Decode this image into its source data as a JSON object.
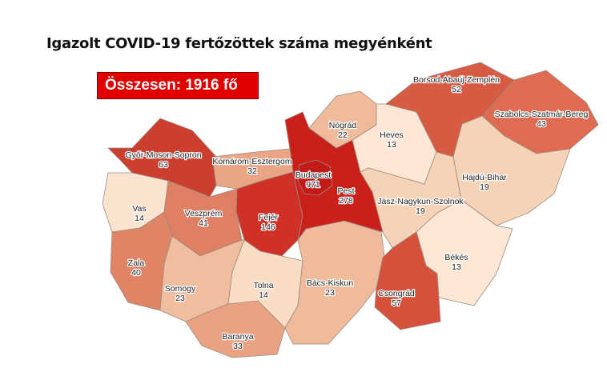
{
  "title": "Igazolt COVID-19 fertőzöttek száma megyénként",
  "total_label": "Összesen: 1916 fő",
  "legend_colors": {
    "highest": "#c61f1a",
    "lowest": "#fbe7d3"
  },
  "counties": [
    {
      "name": "Győr-Moson-Sopron",
      "value": 63,
      "color": "#cc3f2e"
    },
    {
      "name": "Komárom-Esztergom",
      "value": 32,
      "color": "#eaa585"
    },
    {
      "name": "Vas",
      "value": 14,
      "color": "#fbe4cf"
    },
    {
      "name": "Veszprém",
      "value": 41,
      "color": "#df7f63"
    },
    {
      "name": "Zala",
      "value": 40,
      "color": "#e08466"
    },
    {
      "name": "Fejér",
      "value": 146,
      "color": "#cf3126"
    },
    {
      "name": "Somogy",
      "value": 23,
      "color": "#f0bd9e"
    },
    {
      "name": "Baranya",
      "value": 33,
      "color": "#eaa282"
    },
    {
      "name": "Tolna",
      "value": 14,
      "color": "#f8dcc3"
    },
    {
      "name": "Bács-Kiskun",
      "value": 23,
      "color": "#f0bb9b"
    },
    {
      "name": "Pest",
      "value": 278,
      "color": "#cb1f1a"
    },
    {
      "name": "Budapest",
      "value": 971,
      "color": "#c21a17"
    },
    {
      "name": "Nógrád",
      "value": 22,
      "color": "#f0bb9b"
    },
    {
      "name": "Heves",
      "value": 13,
      "color": "#fce7d4"
    },
    {
      "name": "Borsod-Abaúj-Zemplén",
      "value": 52,
      "color": "#d75a43"
    },
    {
      "name": "Szabolcs-Szatmár-Bereg",
      "value": 43,
      "color": "#dd6c52"
    },
    {
      "name": "Hajdú-Bihar",
      "value": 19,
      "color": "#f6d3b7"
    },
    {
      "name": "Jász-Nagykun-Szolnok",
      "value": 19,
      "color": "#f6d3b7"
    },
    {
      "name": "Békés",
      "value": 13,
      "color": "#fce7d4"
    },
    {
      "name": "Csongrád",
      "value": 57,
      "color": "#d6513c"
    }
  ]
}
